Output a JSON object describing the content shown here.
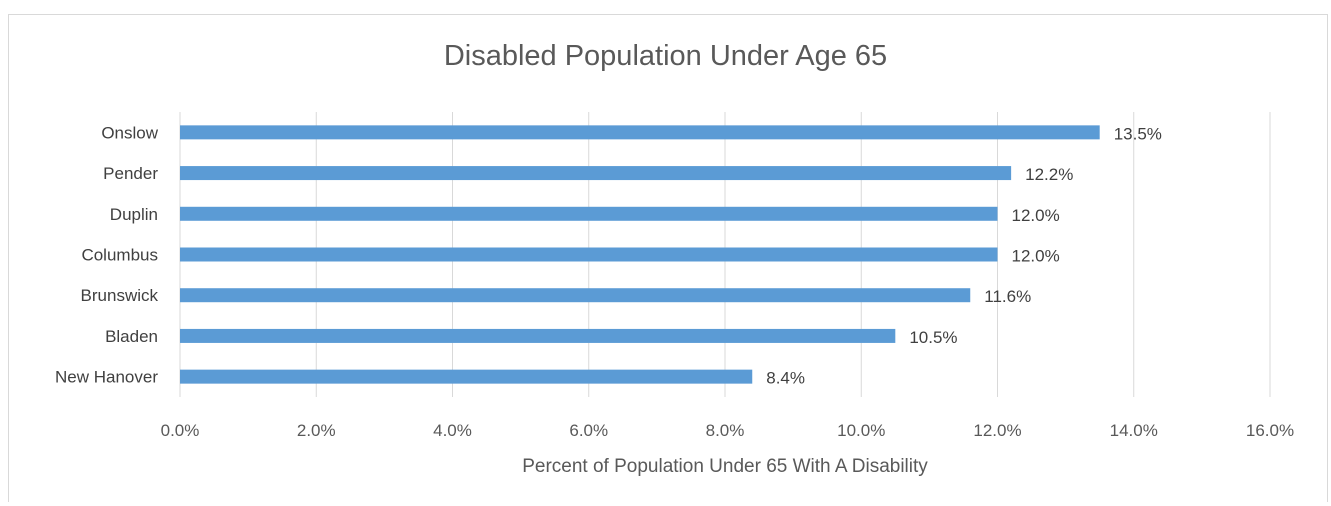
{
  "chart_data": {
    "type": "bar",
    "orientation": "horizontal",
    "title": "Disabled Population Under Age 65",
    "xlabel": "Percent of Population Under 65 With A Disability",
    "ylabel": "",
    "categories": [
      "Onslow",
      "Pender",
      "Duplin",
      "Columbus",
      "Brunswick",
      "Bladen",
      "New Hanover"
    ],
    "values": [
      13.5,
      12.2,
      12.0,
      12.0,
      11.6,
      10.5,
      8.4
    ],
    "data_labels": [
      "13.5%",
      "12.2%",
      "12.0%",
      "12.0%",
      "11.6%",
      "10.5%",
      "8.4%"
    ],
    "xlim": [
      0,
      16
    ],
    "xticks": [
      0,
      2,
      4,
      6,
      8,
      10,
      12,
      14,
      16
    ],
    "xtick_labels": [
      "0.0%",
      "2.0%",
      "4.0%",
      "6.0%",
      "8.0%",
      "10.0%",
      "12.0%",
      "14.0%",
      "16.0%"
    ],
    "grid": "vertical",
    "legend": "none",
    "bar_color": "#5B9BD5",
    "grid_color": "#d9d9d9"
  }
}
